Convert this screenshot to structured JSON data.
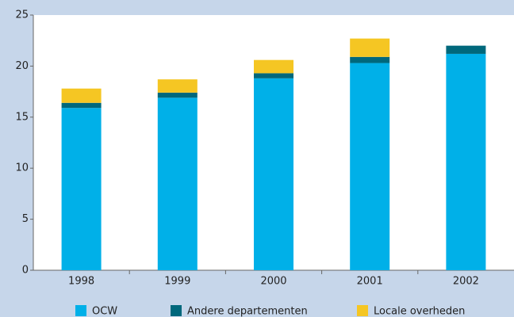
{
  "chart_data": {
    "type": "stacked-bar",
    "categories": [
      "1998",
      "1999",
      "2000",
      "2001",
      "2002"
    ],
    "series": [
      {
        "name": "OCW",
        "color": "#00b0e8",
        "values": [
          15.9,
          16.9,
          18.8,
          20.3,
          21.2
        ]
      },
      {
        "name": "Andere departementen",
        "color": "#00687c",
        "values": [
          0.5,
          0.5,
          0.5,
          0.6,
          0.8
        ]
      },
      {
        "name": "Locale overheden",
        "color": "#f5c623",
        "values": [
          1.4,
          1.3,
          1.3,
          1.8,
          0
        ]
      }
    ],
    "ylim": [
      0,
      25
    ],
    "yticks": [
      0,
      5,
      10,
      15,
      20,
      25
    ],
    "legend": "bottom"
  }
}
